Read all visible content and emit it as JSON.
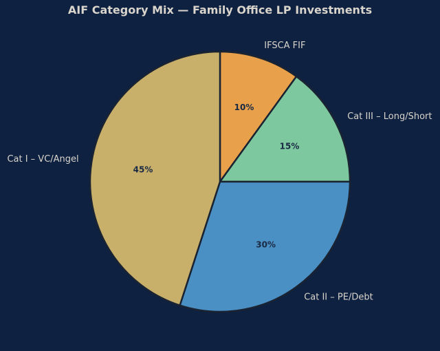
{
  "background": "#0f2140",
  "chart_data": {
    "type": "pie",
    "title": "AIF Category Mix — Family Office LP Investments",
    "start_angle_deg": 90,
    "direction": "clockwise",
    "slices": [
      {
        "label": "IFSCA FIF",
        "value": 10,
        "pct_label": "10%",
        "color": "#e8a04a"
      },
      {
        "label": "Cat III – Long/Short",
        "value": 15,
        "pct_label": "15%",
        "color": "#7ec8a0"
      },
      {
        "label": "Cat II – PE/Debt",
        "value": 30,
        "pct_label": "30%",
        "color": "#4a90c4"
      },
      {
        "label": "Cat I – VC/Angel",
        "value": 45,
        "pct_label": "45%",
        "color": "#c8b06a"
      }
    ],
    "edge_color": "#1a2332"
  }
}
